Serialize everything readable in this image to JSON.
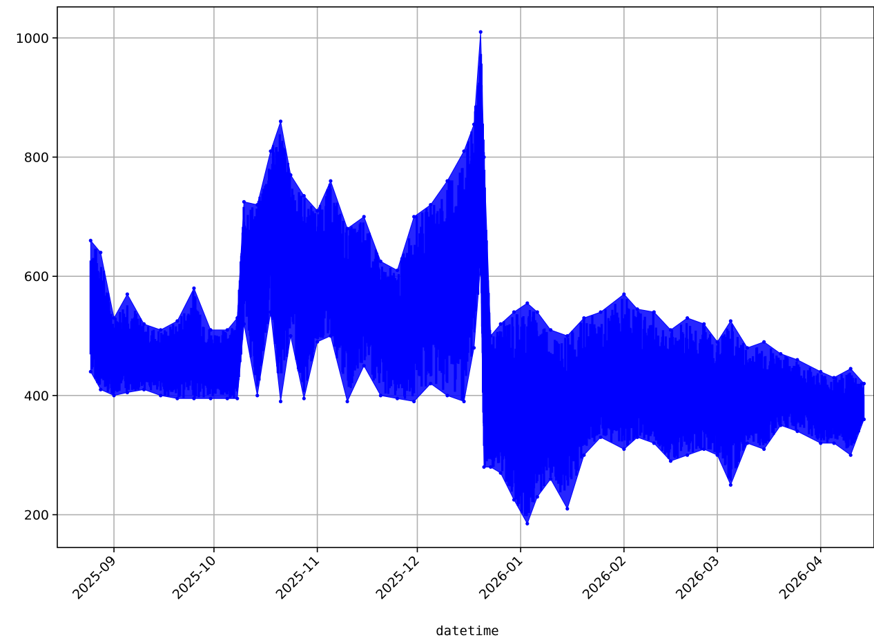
{
  "chart_data": {
    "type": "line",
    "title": "",
    "xlabel": "datetime",
    "ylabel": "",
    "x_type": "date",
    "xlim": [
      "2025-08-15",
      "2026-04-17"
    ],
    "ylim": [
      145,
      1052
    ],
    "x_ticks": [
      "2025-09",
      "2025-10",
      "2025-11",
      "2025-12",
      "2026-01",
      "2026-02",
      "2026-03",
      "2026-04"
    ],
    "y_ticks": [
      200,
      400,
      600,
      800,
      1000
    ],
    "grid": true,
    "legend": "none",
    "series": [
      {
        "color": "#0000ff",
        "marker": "dot",
        "x": [
          "2025-08-25",
          "2025-08-28",
          "2025-09-01",
          "2025-09-05",
          "2025-09-10",
          "2025-09-15",
          "2025-09-20",
          "2025-09-25",
          "2025-09-30",
          "2025-10-05",
          "2025-10-08",
          "2025-10-10",
          "2025-10-14",
          "2025-10-18",
          "2025-10-21",
          "2025-10-24",
          "2025-10-28",
          "2025-11-01",
          "2025-11-05",
          "2025-11-10",
          "2025-11-15",
          "2025-11-20",
          "2025-11-25",
          "2025-11-30",
          "2025-12-05",
          "2025-12-10",
          "2025-12-15",
          "2025-12-18",
          "2025-12-20",
          "2025-12-21",
          "2025-12-23",
          "2025-12-26",
          "2025-12-30",
          "2026-01-03",
          "2026-01-06",
          "2026-01-10",
          "2026-01-15",
          "2026-01-20",
          "2026-01-25",
          "2026-02-01",
          "2026-02-05",
          "2026-02-10",
          "2026-02-15",
          "2026-02-20",
          "2026-02-25",
          "2026-03-01",
          "2026-03-05",
          "2026-03-10",
          "2026-03-15",
          "2026-03-20",
          "2026-03-25",
          "2026-04-01",
          "2026-04-05",
          "2026-04-10",
          "2026-04-14"
        ],
        "y_max": [
          660,
          640,
          530,
          570,
          520,
          510,
          525,
          580,
          510,
          510,
          530,
          725,
          720,
          810,
          860,
          770,
          735,
          710,
          760,
          680,
          700,
          625,
          610,
          700,
          720,
          760,
          810,
          855,
          1010,
          800,
          500,
          520,
          540,
          555,
          540,
          510,
          500,
          530,
          540,
          570,
          545,
          540,
          510,
          530,
          520,
          490,
          525,
          480,
          490,
          470,
          460,
          440,
          430,
          445,
          420
        ],
        "y_min": [
          440,
          410,
          400,
          405,
          410,
          400,
          395,
          395,
          395,
          395,
          395,
          520,
          400,
          540,
          390,
          500,
          395,
          490,
          500,
          390,
          450,
          400,
          395,
          390,
          420,
          400,
          390,
          480,
          620,
          280,
          280,
          270,
          225,
          185,
          230,
          260,
          210,
          300,
          330,
          310,
          330,
          320,
          290,
          300,
          310,
          300,
          250,
          320,
          310,
          350,
          340,
          320,
          320,
          300,
          360
        ],
        "y_typical": [
          550,
          500,
          460,
          460,
          460,
          450,
          450,
          470,
          440,
          450,
          460,
          620,
          600,
          680,
          640,
          640,
          590,
          600,
          620,
          560,
          560,
          520,
          500,
          560,
          560,
          580,
          600,
          680,
          820,
          420,
          380,
          380,
          370,
          370,
          380,
          380,
          370,
          390,
          400,
          400,
          410,
          400,
          390,
          400,
          410,
          400,
          390,
          390,
          400,
          390,
          400,
          380,
          370,
          370,
          380
        ]
      }
    ]
  }
}
